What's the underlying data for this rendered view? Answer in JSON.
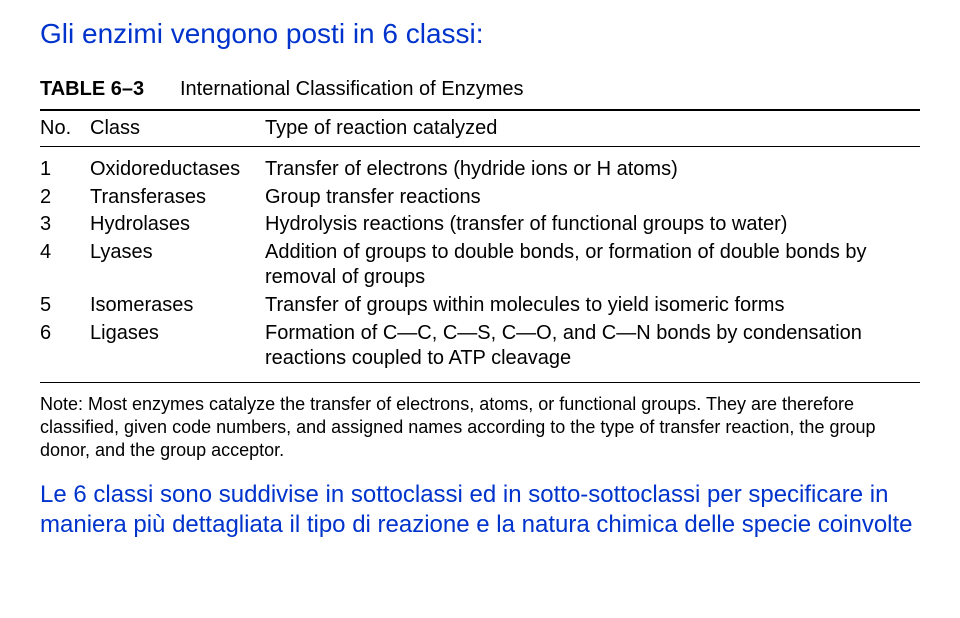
{
  "title": "Gli enzimi vengono posti in 6 classi:",
  "table": {
    "label": "TABLE 6–3",
    "title": "International Classification of Enzymes",
    "columns": {
      "c0": "No.",
      "c1": "Class",
      "c2": "Type of reaction catalyzed"
    },
    "rows": [
      {
        "no": "1",
        "cls": "Oxidoreductases",
        "desc": "Transfer of electrons (hydride ions or H atoms)"
      },
      {
        "no": "2",
        "cls": "Transferases",
        "desc": "Group transfer reactions"
      },
      {
        "no": "3",
        "cls": "Hydrolases",
        "desc": "Hydrolysis reactions (transfer of functional groups to water)"
      },
      {
        "no": "4",
        "cls": "Lyases",
        "desc": "Addition of groups to double bonds, or formation of double bonds by removal of groups"
      },
      {
        "no": "5",
        "cls": "Isomerases",
        "desc": "Transfer of groups within molecules to yield isomeric forms"
      },
      {
        "no": "6",
        "cls": "Ligases",
        "desc": "Formation of C—C, C—S, C—O, and C—N bonds by condensation reactions coupled to ATP cleavage"
      }
    ]
  },
  "note": "Note: Most enzymes catalyze the transfer of electrons, atoms, or functional groups. They are therefore classified, given code numbers, and assigned names according to the type of transfer reaction, the group donor, and the group acceptor.",
  "bottom": "Le 6 classi sono suddivise in sottoclassi ed in sotto-sottoclassi per specificare in maniera più dettagliata il tipo di reazione e la natura chimica delle specie coinvolte"
}
